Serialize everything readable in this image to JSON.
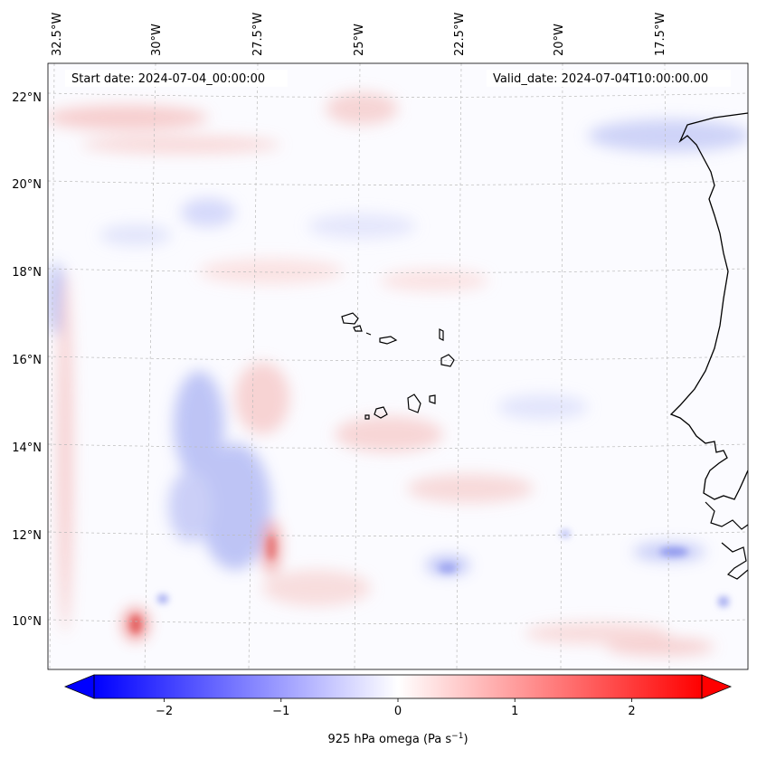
{
  "header": {
    "start_date": "Start date: 2024-07-04_00:00:00",
    "valid_date": "Valid_date: 2024-07-04T10:00:00.00"
  },
  "axes": {
    "lon_labels": [
      "32.5°W",
      "30°W",
      "27.5°W",
      "25°W",
      "22.5°W",
      "20°W",
      "17.5°W"
    ],
    "lat_labels": [
      "22°N",
      "20°N",
      "18°N",
      "16°N",
      "14°N",
      "12°N",
      "10°N"
    ]
  },
  "colorbar": {
    "label": "925 hPa omega (Pa s",
    "label_sup": "−1",
    "label_tail": ")",
    "ticks": [
      "−2",
      "−1",
      "0",
      "1",
      "2"
    ],
    "tick_values": [
      -2,
      -1,
      0,
      1,
      2
    ],
    "range": [
      -2.6,
      2.6
    ],
    "colormap": "bwr",
    "low_color": "#0000ff",
    "mid_color": "#ffffff",
    "high_color": "#ff0000"
  },
  "colors": {
    "coast": "#000000",
    "grid": "#bbbbbb"
  }
}
